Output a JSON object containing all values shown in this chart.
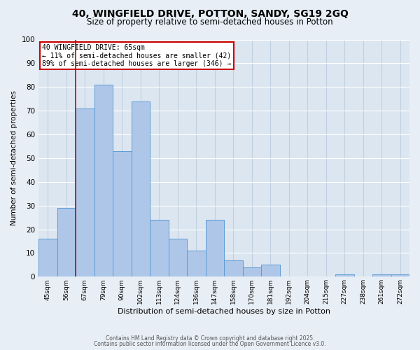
{
  "title1": "40, WINGFIELD DRIVE, POTTON, SANDY, SG19 2GQ",
  "title2": "Size of property relative to semi-detached houses in Potton",
  "xlabel": "Distribution of semi-detached houses by size in Potton",
  "ylabel": "Number of semi-detached properties",
  "categories": [
    "45sqm",
    "56sqm",
    "67sqm",
    "79sqm",
    "90sqm",
    "102sqm",
    "113sqm",
    "124sqm",
    "136sqm",
    "147sqm",
    "158sqm",
    "170sqm",
    "181sqm",
    "192sqm",
    "204sqm",
    "215sqm",
    "227sqm",
    "238sqm",
    "261sqm",
    "272sqm"
  ],
  "values": [
    16,
    29,
    71,
    81,
    53,
    74,
    24,
    16,
    11,
    24,
    7,
    4,
    5,
    0,
    0,
    0,
    1,
    0,
    1,
    1
  ],
  "bar_color": "#aec6e8",
  "bar_edge_color": "#5b9bd5",
  "red_line_x": 1.5,
  "annotation_title": "40 WINGFIELD DRIVE: 65sqm",
  "annotation_line1": "← 11% of semi-detached houses are smaller (42)",
  "annotation_line2": "89% of semi-detached houses are larger (346) →",
  "annotation_box_color": "#ffffff",
  "annotation_border_color": "#cc0000",
  "ylim": [
    0,
    100
  ],
  "yticks": [
    0,
    10,
    20,
    30,
    40,
    50,
    60,
    70,
    80,
    90,
    100
  ],
  "background_color": "#e8eef5",
  "plot_background": "#dce6f0",
  "footer1": "Contains HM Land Registry data © Crown copyright and database right 2025.",
  "footer2": "Contains public sector information licensed under the Open Government Licence v3.0.",
  "grid_color": "#c8d8e8",
  "title_fontsize": 10,
  "subtitle_fontsize": 8.5
}
